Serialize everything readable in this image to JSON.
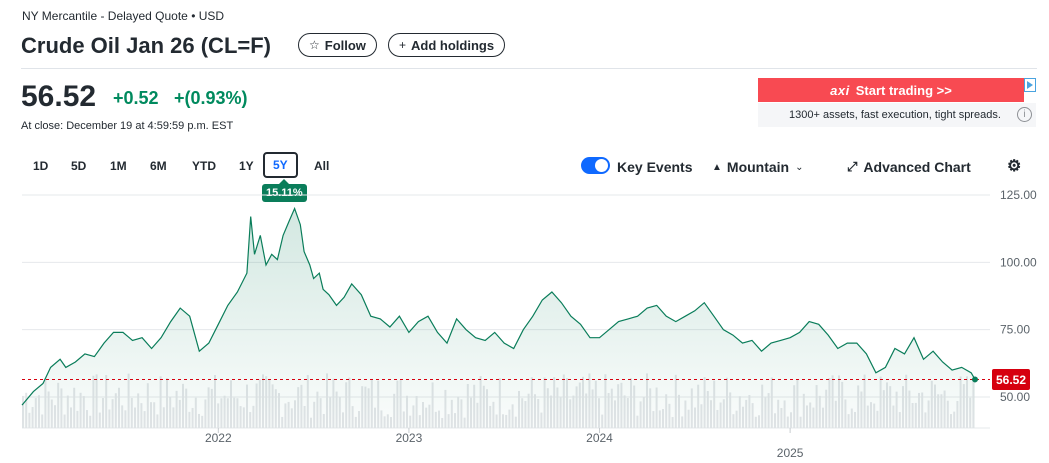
{
  "header": {
    "exchange": "NY Mercantile - Delayed Quote • USD",
    "title": "Crude Oil Jan 26 (CL=F)",
    "follow_label": "Follow",
    "add_holdings_label": "Add holdings"
  },
  "quote": {
    "price": "56.52",
    "change": "+0.52",
    "change_pct": "+(0.93%)",
    "close_time": "At close: December 19 at 4:59:59 p.m. EST",
    "up_color": "#008a5e"
  },
  "ad": {
    "brand": "axi",
    "cta": "Start trading >>",
    "subtext": "1300+ assets, fast execution, tight spreads.",
    "info_icon": "info-icon"
  },
  "toolbar": {
    "ranges": [
      "1D",
      "5D",
      "1M",
      "6M",
      "YTD",
      "1Y",
      "5Y",
      "All"
    ],
    "selected_range": "5Y",
    "tooltip": "15.11%",
    "key_events_label": "Key Events",
    "key_events_on": true,
    "chart_type_label": "Mountain",
    "advanced_chart_label": "Advanced Chart",
    "settings_icon": "gear-icon"
  },
  "chart_data": {
    "type": "area",
    "ylim": [
      40,
      130
    ],
    "yticks": [
      "125.00",
      "100.00",
      "75.00",
      "50.00"
    ],
    "ytick_values": [
      125,
      100,
      75,
      50
    ],
    "xtick_labels": [
      "2022",
      "2023",
      "2024",
      "2025"
    ],
    "xtick_values": [
      2022.0,
      2023.0,
      2024.0,
      2025.0
    ],
    "xlim": [
      2020.97,
      2025.97
    ],
    "current_value": "56.52",
    "current_value_num": 56.52,
    "line_color": "#0a7d5a",
    "reference_color": "#d6000f",
    "x": [
      2020.97,
      2021.03,
      2021.08,
      2021.12,
      2021.17,
      2021.2,
      2021.25,
      2021.3,
      2021.35,
      2021.4,
      2021.45,
      2021.5,
      2021.55,
      2021.6,
      2021.65,
      2021.7,
      2021.75,
      2021.8,
      2021.85,
      2021.9,
      2021.95,
      2022.0,
      2022.05,
      2022.1,
      2022.15,
      2022.17,
      2022.19,
      2022.22,
      2022.25,
      2022.28,
      2022.31,
      2022.34,
      2022.37,
      2022.4,
      2022.43,
      2022.45,
      2022.48,
      2022.5,
      2022.53,
      2022.55,
      2022.58,
      2022.62,
      2022.66,
      2022.7,
      2022.75,
      2022.8,
      2022.85,
      2022.9,
      2022.95,
      2023.0,
      2023.05,
      2023.1,
      2023.15,
      2023.2,
      2023.25,
      2023.3,
      2023.35,
      2023.4,
      2023.45,
      2023.5,
      2023.55,
      2023.6,
      2023.65,
      2023.7,
      2023.75,
      2023.8,
      2023.85,
      2023.9,
      2023.95,
      2024.0,
      2024.05,
      2024.1,
      2024.15,
      2024.2,
      2024.25,
      2024.3,
      2024.35,
      2024.4,
      2024.45,
      2024.5,
      2024.55,
      2024.6,
      2024.65,
      2024.7,
      2024.75,
      2024.8,
      2024.85,
      2024.9,
      2024.95,
      2025.0,
      2025.05,
      2025.1,
      2025.15,
      2025.2,
      2025.25,
      2025.3,
      2025.35,
      2025.4,
      2025.45,
      2025.5,
      2025.55,
      2025.6,
      2025.65,
      2025.7,
      2025.75,
      2025.8,
      2025.85,
      2025.9,
      2025.95,
      2025.97
    ],
    "y": [
      47,
      52,
      55,
      61,
      64,
      61,
      63,
      66,
      65,
      70,
      74,
      74,
      71,
      72,
      68,
      72,
      78,
      83,
      80,
      67,
      70,
      77,
      84,
      89,
      96,
      117,
      103,
      110,
      99,
      103,
      101,
      110,
      115,
      120,
      114,
      104,
      99,
      94,
      96,
      90,
      88,
      84,
      87,
      92,
      88,
      80,
      79,
      76,
      80,
      74,
      78,
      80,
      74,
      70,
      79,
      75,
      72,
      71,
      74,
      70,
      68,
      75,
      80,
      86,
      89,
      85,
      80,
      77,
      72,
      72,
      75,
      78,
      79,
      80,
      83,
      84,
      80,
      78,
      80,
      82,
      85,
      80,
      75,
      73,
      70,
      71,
      67,
      70,
      71,
      72,
      74,
      78,
      77,
      73,
      68,
      70,
      70,
      66,
      59,
      61,
      68,
      66,
      72,
      64,
      67,
      63,
      60,
      61,
      59,
      56.52
    ]
  }
}
